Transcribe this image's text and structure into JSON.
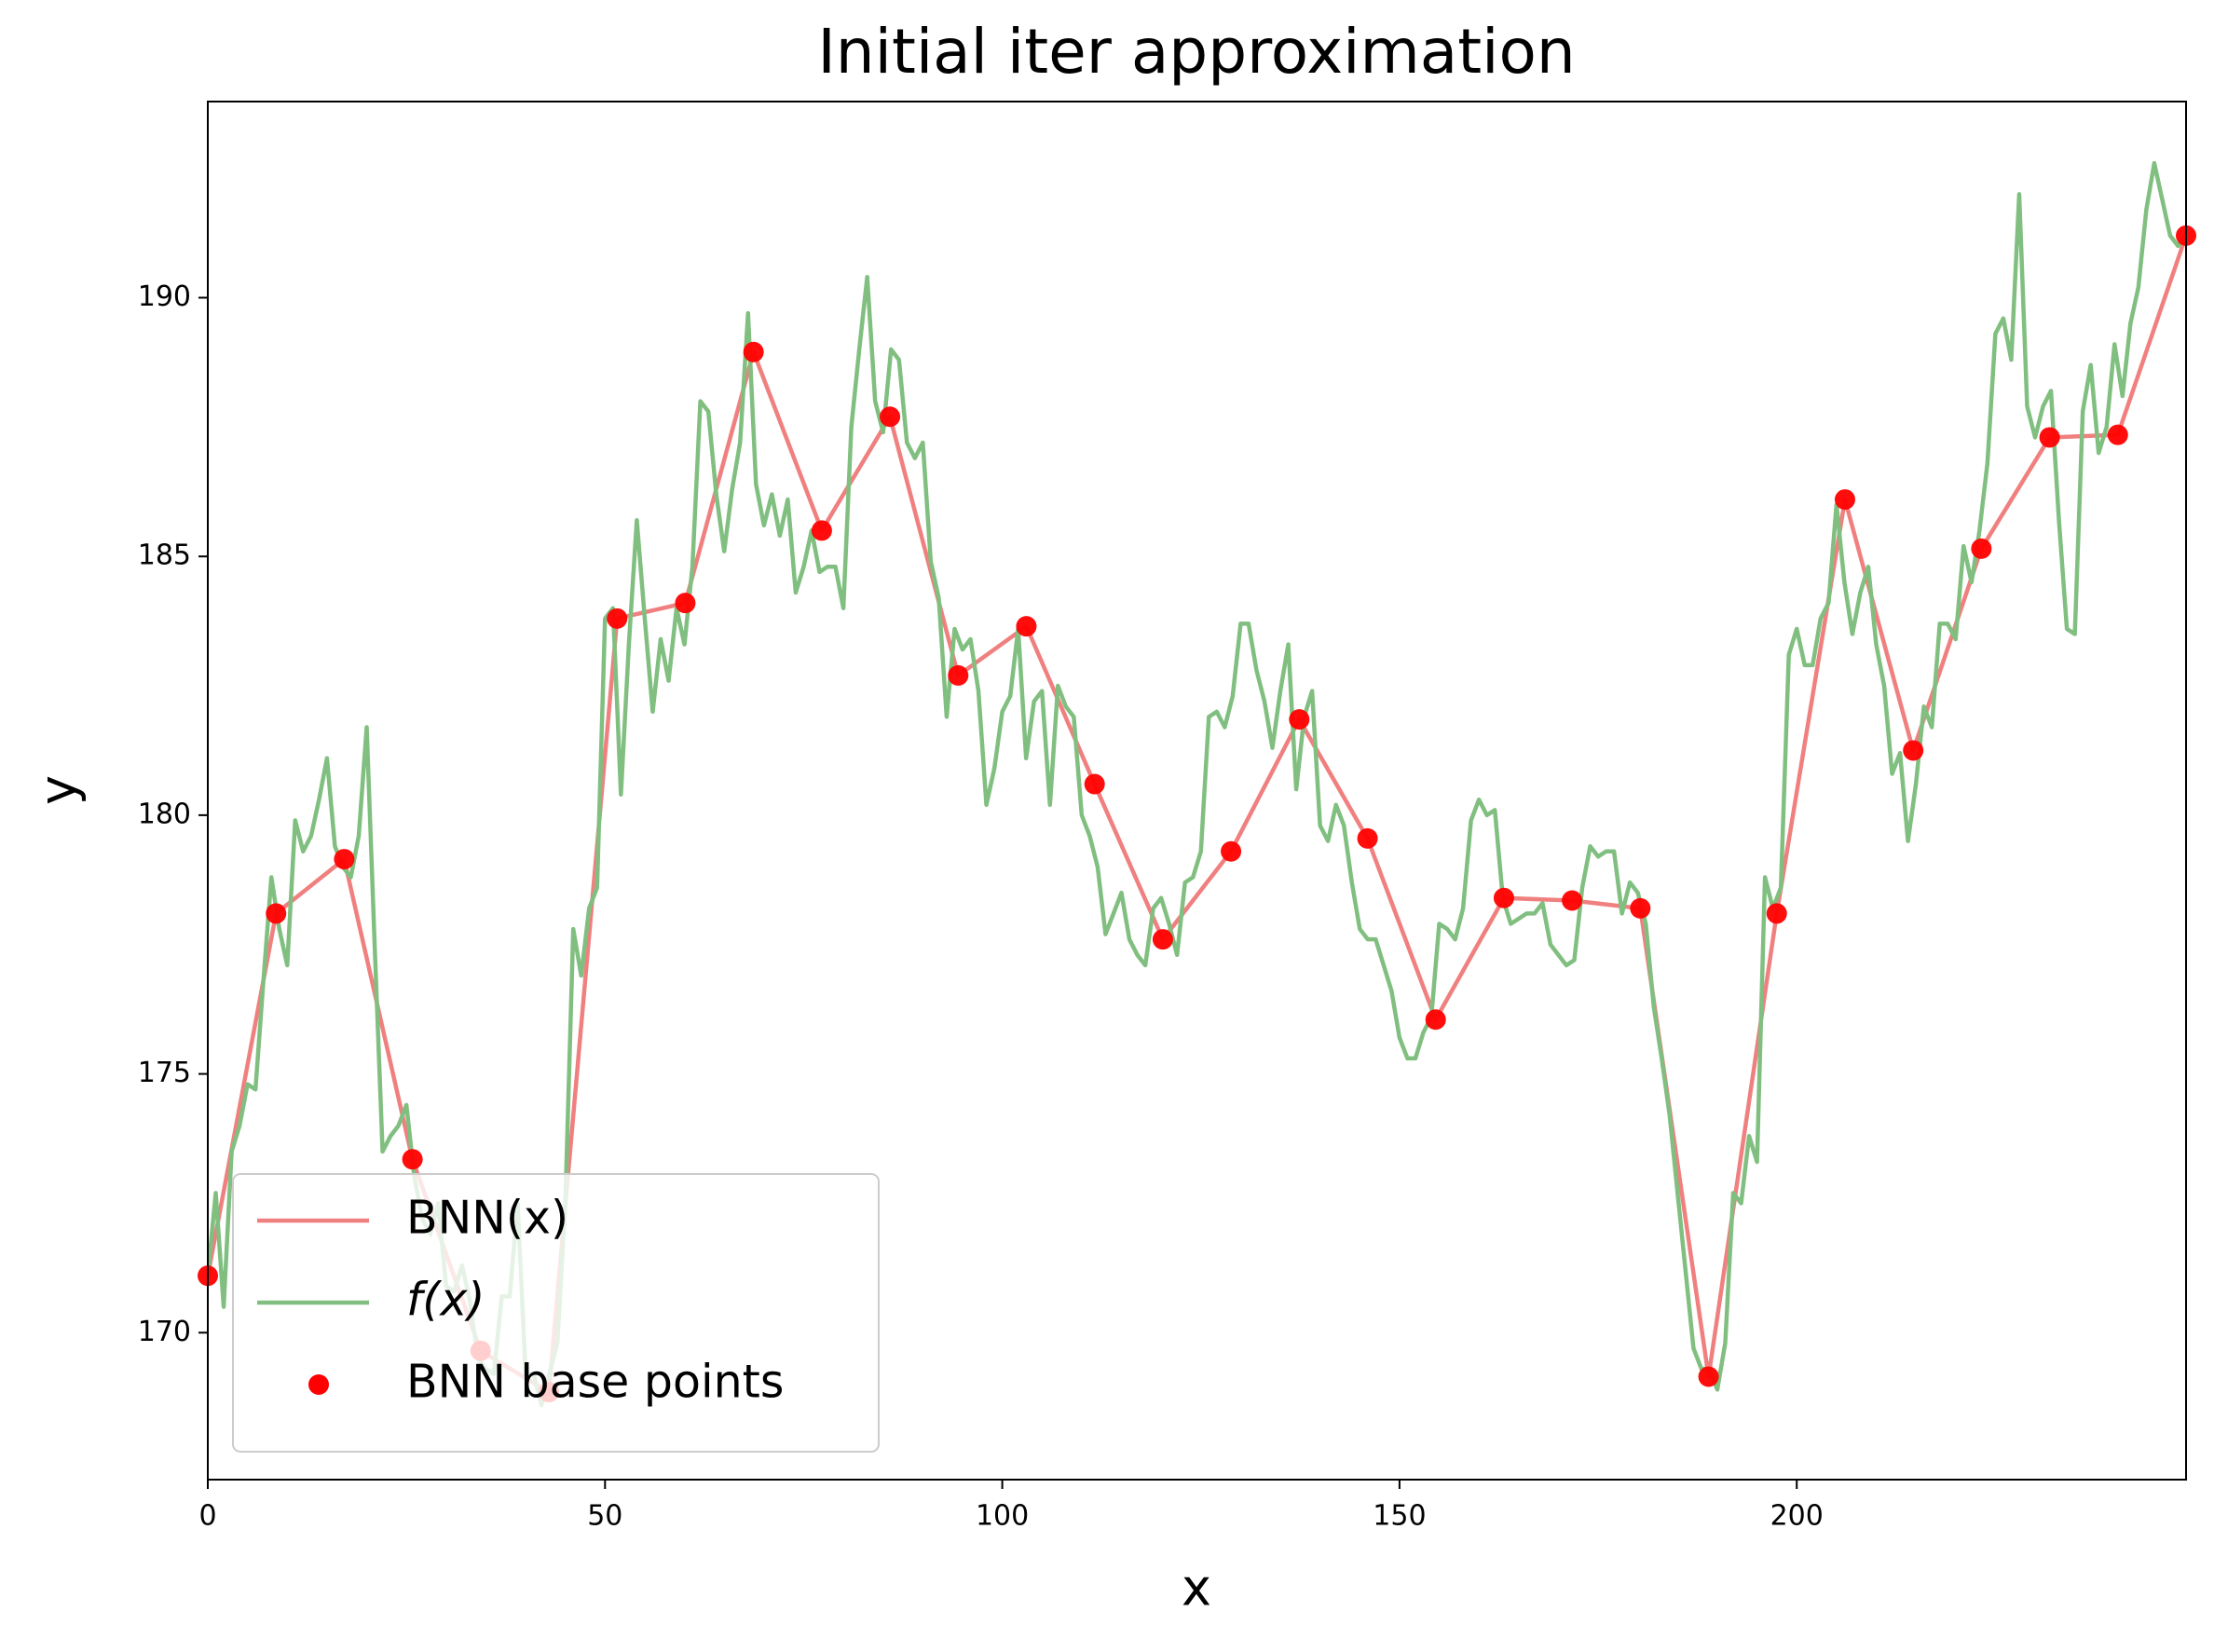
{
  "chart_data": {
    "type": "line",
    "title": "Initial iter approximation",
    "xlabel": "x",
    "ylabel": "y",
    "xlim": [
      0,
      249
    ],
    "ylim": [
      167.16,
      193.79
    ],
    "xticks": [
      0,
      50,
      100,
      150,
      200
    ],
    "yticks": [
      170,
      175,
      180,
      185,
      190
    ],
    "grid": false,
    "legend": "lower left",
    "series": [
      {
        "name": "BNN(x)",
        "kind": "line",
        "color": "#f08080",
        "x": [
          0,
          8.59,
          17.17,
          25.76,
          34.34,
          42.93,
          51.52,
          60.1,
          68.69,
          77.28,
          85.86,
          94.45,
          103.03,
          111.62,
          120.21,
          128.79,
          137.38,
          145.97,
          154.55,
          163.14,
          171.72,
          180.31,
          188.9,
          197.48,
          206.07,
          214.66,
          223.24,
          231.83,
          240.41,
          249
        ],
        "values": [
          171.1,
          178.1,
          179.15,
          173.35,
          169.65,
          168.85,
          183.8,
          184.1,
          188.95,
          185.5,
          187.7,
          182.7,
          183.65,
          180.6,
          177.6,
          179.3,
          181.85,
          179.55,
          176.05,
          178.4,
          178.35,
          178.2,
          169.15,
          178.1,
          186.1,
          181.25,
          185.15,
          187.3,
          187.35,
          191.2
        ]
      },
      {
        "name": "f(x)",
        "kind": "line",
        "color": "#80bf80",
        "x": [
          0,
          1,
          2,
          3,
          4,
          5,
          6,
          7,
          8,
          9,
          10,
          11,
          12,
          13,
          14,
          15,
          16,
          17,
          18,
          19,
          20,
          21,
          22,
          23,
          24,
          25,
          26,
          27,
          28,
          29,
          30,
          31,
          32,
          33,
          34,
          35,
          36,
          37,
          38,
          39,
          40,
          41,
          42,
          43,
          44,
          45,
          46,
          47,
          48,
          49,
          50,
          51,
          52,
          53,
          54,
          55,
          56,
          57,
          58,
          59,
          60,
          61,
          62,
          63,
          64,
          65,
          66,
          67,
          68,
          69,
          70,
          71,
          72,
          73,
          74,
          75,
          76,
          77,
          78,
          79,
          80,
          81,
          82,
          83,
          84,
          85,
          86,
          87,
          88,
          89,
          90,
          91,
          92,
          93,
          94,
          95,
          96,
          97,
          98,
          99,
          100,
          101,
          102,
          103,
          104,
          105,
          106,
          107,
          108,
          109,
          110,
          111,
          112,
          113,
          114,
          115,
          116,
          117,
          118,
          119,
          120,
          121,
          122,
          123,
          124,
          125,
          126,
          127,
          128,
          129,
          130,
          131,
          132,
          133,
          134,
          135,
          136,
          137,
          138,
          139,
          140,
          141,
          142,
          143,
          144,
          145,
          146,
          147,
          148,
          149,
          150,
          151,
          152,
          153,
          154,
          155,
          156,
          157,
          158,
          159,
          160,
          161,
          162,
          163,
          164,
          165,
          166,
          167,
          168,
          169,
          170,
          171,
          172,
          173,
          174,
          175,
          176,
          177,
          178,
          179,
          180,
          181,
          182,
          183,
          184,
          185,
          186,
          187,
          188,
          189,
          190,
          191,
          192,
          193,
          194,
          195,
          196,
          197,
          198,
          199,
          200,
          201,
          202,
          203,
          204,
          205,
          206,
          207,
          208,
          209,
          210,
          211,
          212,
          213,
          214,
          215,
          216,
          217,
          218,
          219,
          220,
          221,
          222,
          223,
          224,
          225,
          226,
          227,
          228,
          229,
          230,
          231,
          232,
          233,
          234,
          235,
          236,
          237,
          238,
          239,
          240,
          241,
          242,
          243,
          244,
          245,
          246,
          247,
          248,
          249
        ],
        "values": [
          171.1,
          172.7,
          170.5,
          173.5,
          174.0,
          174.8,
          174.7,
          176.8,
          178.8,
          177.8,
          177.1,
          179.9,
          179.3,
          179.6,
          180.3,
          181.1,
          179.4,
          179.0,
          178.8,
          179.6,
          181.7,
          177.5,
          173.5,
          173.8,
          174.0,
          174.4,
          173.0,
          172.2,
          171.9,
          172.5,
          170.9,
          170.8,
          171.3,
          170.6,
          169.5,
          169.3,
          169.2,
          170.7,
          170.7,
          172.5,
          169.2,
          169.2,
          168.6,
          169.2,
          169.8,
          172.5,
          177.8,
          176.9,
          178.2,
          178.6,
          183.8,
          184.0,
          180.4,
          183.3,
          185.7,
          183.8,
          182.0,
          183.4,
          182.6,
          184.0,
          183.3,
          184.8,
          188.0,
          187.8,
          186.2,
          185.1,
          186.3,
          187.2,
          189.7,
          186.4,
          185.6,
          186.2,
          185.4,
          186.1,
          184.3,
          184.8,
          185.5,
          184.7,
          184.8,
          184.8,
          184.0,
          187.5,
          189.0,
          190.4,
          188.0,
          187.4,
          189.0,
          188.8,
          187.2,
          186.9,
          187.2,
          184.9,
          184.2,
          181.9,
          183.6,
          183.2,
          183.4,
          182.4,
          180.2,
          180.9,
          182.0,
          182.3,
          183.6,
          181.1,
          182.2,
          182.4,
          180.2,
          182.5,
          182.1,
          181.9,
          180.0,
          179.6,
          179.0,
          177.7,
          178.1,
          178.5,
          177.6,
          177.3,
          177.1,
          178.2,
          178.4,
          177.9,
          177.3,
          178.7,
          178.8,
          179.3,
          181.9,
          182.0,
          181.7,
          182.3,
          183.7,
          183.7,
          182.8,
          182.2,
          181.3,
          182.4,
          183.3,
          180.5,
          181.9,
          182.4,
          179.8,
          179.5,
          180.2,
          179.8,
          178.7,
          177.8,
          177.6,
          177.6,
          177.1,
          176.6,
          175.7,
          175.3,
          175.3,
          175.8,
          176.1,
          177.9,
          177.8,
          177.6,
          178.2,
          179.9,
          180.3,
          180.0,
          180.1,
          178.4,
          177.9,
          178.0,
          178.1,
          178.1,
          178.3,
          177.5,
          177.3,
          177.1,
          177.2,
          178.6,
          179.4,
          179.2,
          179.3,
          179.3,
          178.1,
          178.7,
          178.5,
          177.9,
          176.3,
          175.3,
          174.2,
          172.7,
          171.2,
          169.7,
          169.3,
          169.3,
          168.9,
          169.8,
          172.7,
          172.5,
          173.8,
          173.3,
          178.8,
          178.2,
          178.6,
          183.1,
          183.6,
          182.9,
          182.9,
          183.8,
          184.1,
          186.0,
          184.5,
          183.5,
          184.3,
          184.8,
          183.3,
          182.5,
          180.8,
          181.2,
          179.5,
          180.6,
          182.1,
          181.7,
          183.7,
          183.7,
          183.4,
          185.2,
          184.5,
          185.5,
          186.8,
          189.3,
          189.6,
          188.8,
          192.0,
          187.9,
          187.3,
          187.9,
          188.2,
          185.7,
          183.6,
          183.5,
          187.8,
          188.7,
          187.0,
          187.5,
          189.1,
          188.1,
          189.5,
          190.2,
          191.7,
          192.6,
          191.9,
          191.2,
          191.0,
          191.2
        ]
      },
      {
        "name": "BNN base points",
        "kind": "scatter",
        "color": "#ff0000",
        "x": [
          0,
          8.59,
          17.17,
          25.76,
          34.34,
          42.93,
          51.52,
          60.1,
          68.69,
          77.28,
          85.86,
          94.45,
          103.03,
          111.62,
          120.21,
          128.79,
          137.38,
          145.97,
          154.55,
          163.14,
          171.72,
          180.31,
          188.9,
          197.48,
          206.07,
          214.66,
          223.24,
          231.83,
          240.41,
          249
        ],
        "values": [
          171.1,
          178.1,
          179.15,
          173.35,
          169.65,
          168.85,
          183.8,
          184.1,
          188.95,
          185.5,
          187.7,
          182.7,
          183.65,
          180.6,
          177.6,
          179.3,
          181.85,
          179.55,
          176.05,
          178.4,
          178.35,
          178.2,
          169.15,
          178.1,
          186.1,
          181.25,
          185.15,
          187.3,
          187.35,
          191.2
        ]
      }
    ]
  }
}
